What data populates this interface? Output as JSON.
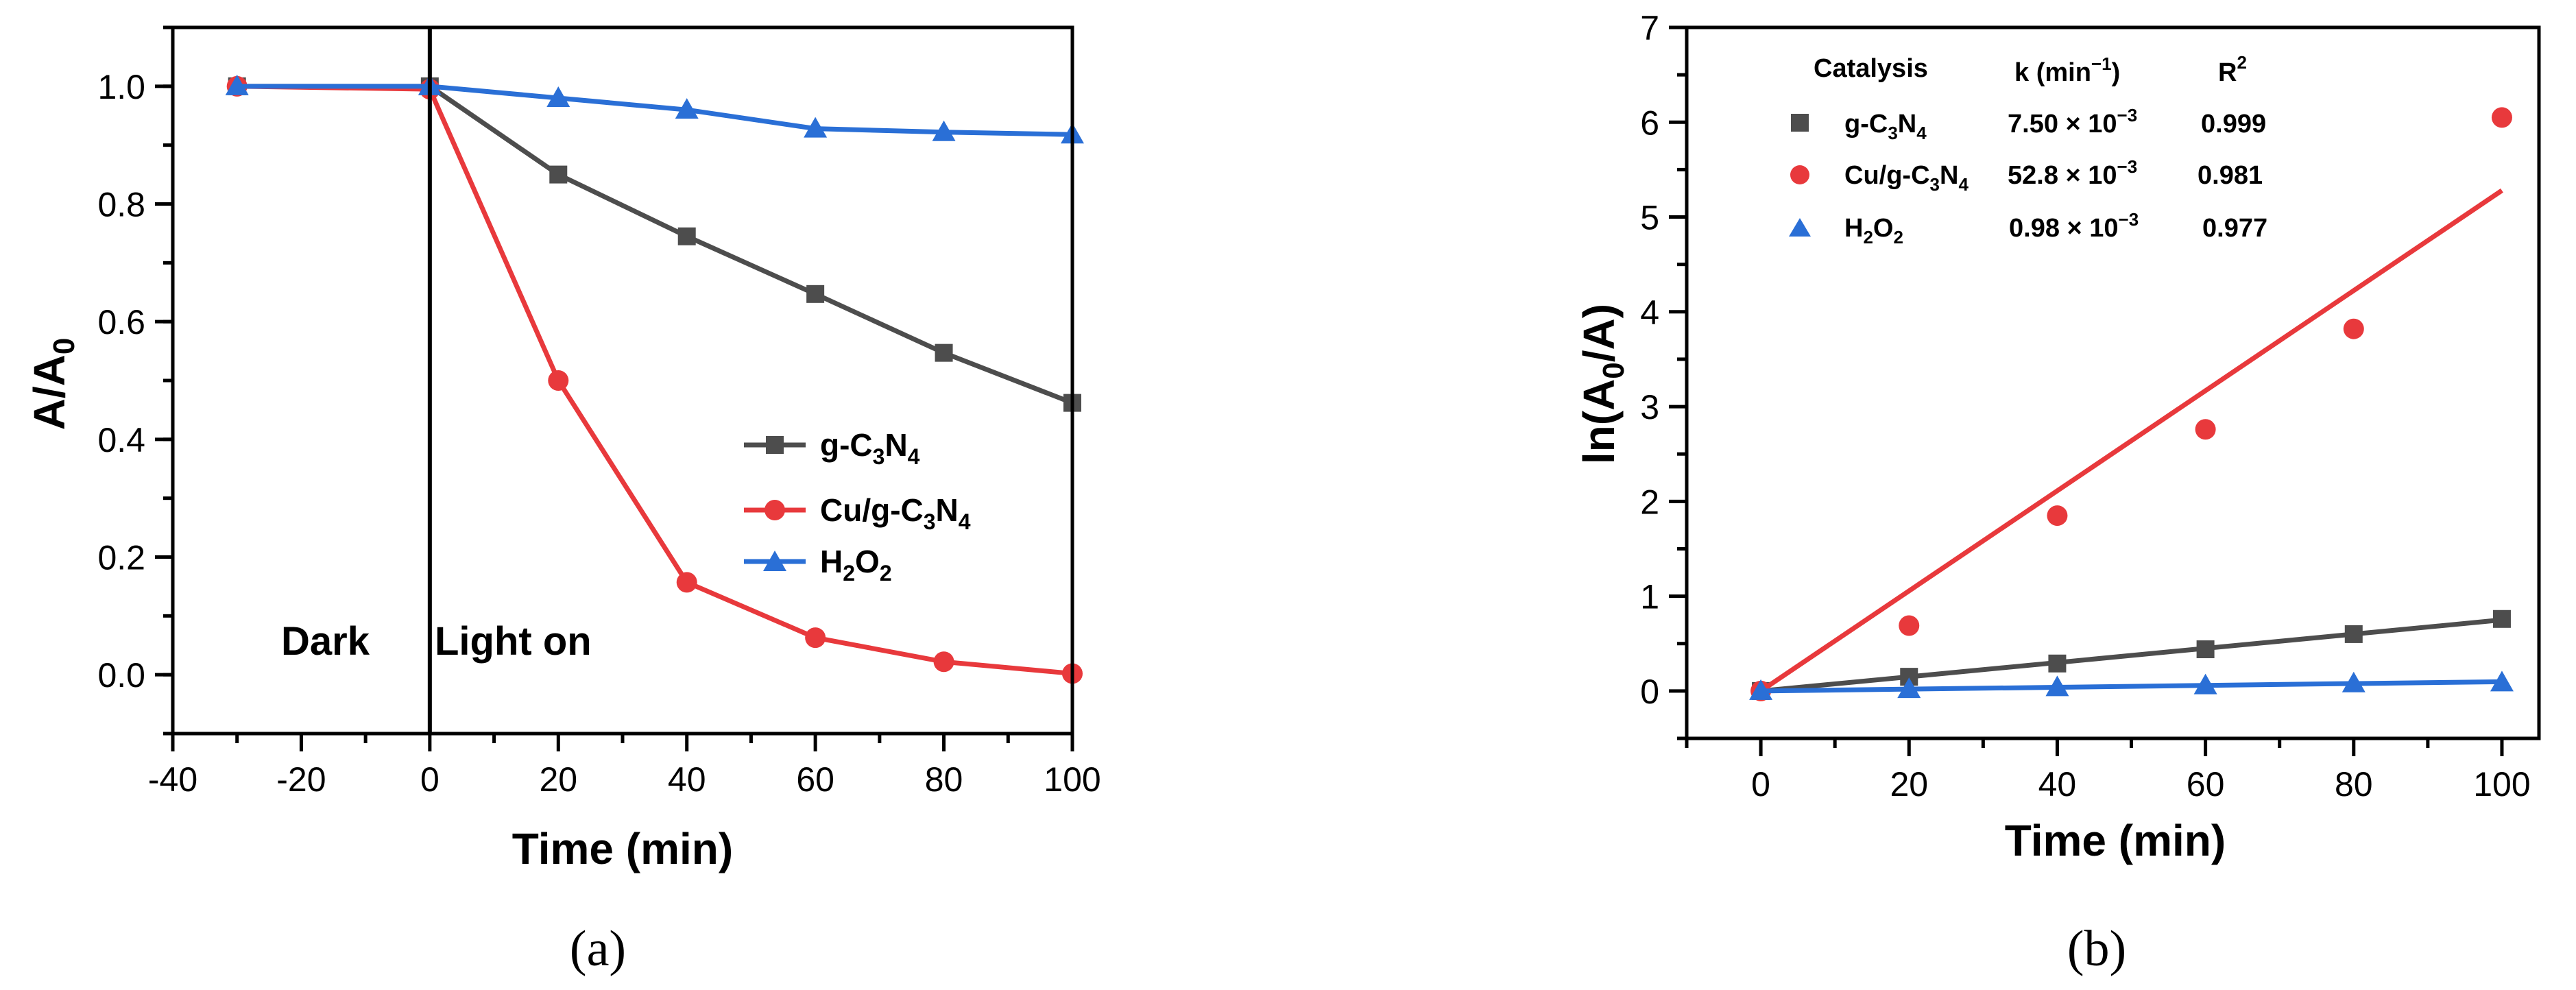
{
  "chart_data": [
    {
      "panel": "(a)",
      "type": "line",
      "xlabel": "Time (min)",
      "ylabel": "A/A0",
      "xlim": [
        -40,
        100
      ],
      "ylim": [
        -0.1,
        1.1
      ],
      "xticks": [
        -40,
        -20,
        0,
        20,
        40,
        60,
        80,
        100
      ],
      "yticks": [
        0.0,
        0.2,
        0.4,
        0.6,
        0.8,
        1.0
      ],
      "xtick_labels": [
        "-40",
        "-20",
        "0",
        "20",
        "40",
        "60",
        "80",
        "100"
      ],
      "ytick_labels": [
        "0.0",
        "0.2",
        "0.4",
        "0.6",
        "0.8",
        "1.0"
      ],
      "annotations": {
        "dark": "Dark",
        "light": "Light on",
        "divider_x": 0
      },
      "legend_position": "center-right",
      "series": [
        {
          "key": "gc3n4",
          "name": "g-C3N4",
          "color": "#4d4d4d",
          "marker": "square",
          "x": [
            -30,
            0,
            20,
            40,
            60,
            80,
            100
          ],
          "y": [
            1.0,
            1.0,
            0.85,
            0.745,
            0.647,
            0.547,
            0.462
          ]
        },
        {
          "key": "cu",
          "name": "Cu/g-C3N4",
          "color": "#e8393c",
          "marker": "circle",
          "x": [
            -30,
            0,
            20,
            40,
            60,
            80,
            100
          ],
          "y": [
            1.0,
            0.995,
            0.5,
            0.157,
            0.063,
            0.022,
            0.002
          ]
        },
        {
          "key": "h2o2",
          "name": "H2O2",
          "color": "#2a6fd6",
          "marker": "triangle",
          "x": [
            -30,
            0,
            20,
            40,
            60,
            80,
            100
          ],
          "y": [
            1.0,
            1.0,
            0.98,
            0.96,
            0.928,
            0.922,
            0.918
          ]
        }
      ]
    },
    {
      "panel": "(b)",
      "type": "scatter",
      "xlabel": "Time (min)",
      "ylabel": "ln(A0/A)",
      "xlim": [
        -10,
        105
      ],
      "ylim": [
        -0.5,
        7
      ],
      "xticks": [
        0,
        20,
        40,
        60,
        80,
        100
      ],
      "yticks": [
        0,
        1,
        2,
        3,
        4,
        5,
        6,
        7
      ],
      "xtick_labels": [
        "0",
        "20",
        "40",
        "60",
        "80",
        "100"
      ],
      "ytick_labels": [
        "0",
        "1",
        "2",
        "3",
        "4",
        "5",
        "6",
        "7"
      ],
      "legend_position": "top-left",
      "table_headers": {
        "catalysis": "Catalysis",
        "k": "k (min",
        "k_exp": "−1",
        "r": "R",
        "r_exp": "2"
      },
      "series": [
        {
          "key": "gc3n4",
          "name": "g-C3N4",
          "color": "#4d4d4d",
          "marker": "square",
          "x": [
            0,
            20,
            40,
            60,
            80,
            100
          ],
          "y": [
            0,
            0.15,
            0.29,
            0.44,
            0.6,
            0.76
          ],
          "fit": [
            0,
            0.75
          ],
          "k_mant": "7.50",
          "k_exp": "−3",
          "r2": "0.999"
        },
        {
          "key": "cu",
          "name": "Cu/g-C3N4",
          "color": "#e8393c",
          "marker": "circle",
          "x": [
            0,
            20,
            40,
            60,
            80,
            100
          ],
          "y": [
            0,
            0.69,
            1.85,
            2.76,
            3.82,
            6.05
          ],
          "fit": [
            0,
            5.28
          ],
          "k_mant": "52.8",
          "k_exp": "−3",
          "r2": "0.981"
        },
        {
          "key": "h2o2",
          "name": "H2O2",
          "color": "#2a6fd6",
          "marker": "triangle",
          "x": [
            0,
            20,
            40,
            60,
            80,
            100
          ],
          "y": [
            0,
            0.02,
            0.04,
            0.06,
            0.08,
            0.09
          ],
          "fit": [
            0,
            0.098
          ],
          "k_mant": "0.98",
          "k_exp": "−3",
          "r2": "0.977"
        }
      ]
    }
  ]
}
